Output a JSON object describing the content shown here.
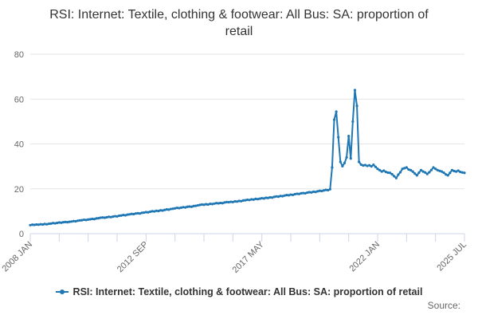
{
  "title": "RSI: Internet: Textile, clothing & footwear: All Bus: SA: proportion of retail",
  "source_label": "Source:",
  "legend": {
    "label": "RSI: Internet: Textile, clothing & footwear: All Bus: SA: proportion of retail"
  },
  "colors": {
    "line": "#1f77b4",
    "grid": "#e6e6e6",
    "axis": "#ccd6eb",
    "tick_label": "#666666",
    "title_text": "#333333",
    "legend_text": "#333333",
    "source_text": "#666666"
  },
  "chart_data": {
    "type": "line",
    "title": "RSI: Internet: Textile, clothing & footwear: All Bus: SA: proportion of retail",
    "xlabel": "",
    "ylabel": "",
    "x_unit": "month",
    "x_start": "2008-01",
    "x_end": "2025-07",
    "x_tick_labels": [
      "2008 JAN",
      "2012 SEP",
      "2017 MAY",
      "2022 JAN",
      "2025 JUL"
    ],
    "x_tick_month_indices": [
      0,
      56,
      112,
      168,
      210
    ],
    "x_minor_tick_interval_months": 14,
    "ylim": [
      0,
      80
    ],
    "y_ticks": [
      0,
      20,
      40,
      60,
      80
    ],
    "grid": "horizontal",
    "legend_position": "bottom",
    "series": [
      {
        "name": "RSI: Internet: Textile, clothing & footwear: All Bus: SA: proportion of retail",
        "color": "#1f77b4",
        "values": [
          3.8,
          4.0,
          3.9,
          4.1,
          4.0,
          4.2,
          4.1,
          4.3,
          4.2,
          4.4,
          4.5,
          4.7,
          4.6,
          4.8,
          5.0,
          4.9,
          5.1,
          5.2,
          5.1,
          5.3,
          5.4,
          5.6,
          5.5,
          5.8,
          5.9,
          6.0,
          6.2,
          6.1,
          6.3,
          6.4,
          6.6,
          6.5,
          6.8,
          6.9,
          7.1,
          7.2,
          7.1,
          7.3,
          7.5,
          7.4,
          7.6,
          7.8,
          7.7,
          8.0,
          8.1,
          8.3,
          8.2,
          8.5,
          8.6,
          8.8,
          8.7,
          9.0,
          9.1,
          9.0,
          9.3,
          9.4,
          9.6,
          9.5,
          9.8,
          10.0,
          9.9,
          10.2,
          10.1,
          10.4,
          10.3,
          10.6,
          10.8,
          10.7,
          11.0,
          11.1,
          11.3,
          11.5,
          11.4,
          11.6,
          11.8,
          11.7,
          12.0,
          12.1,
          12.0,
          12.3,
          12.4,
          12.6,
          12.8,
          13.0,
          12.9,
          13.1,
          13.0,
          13.3,
          13.2,
          13.4,
          13.6,
          13.5,
          13.7,
          13.6,
          13.9,
          14.1,
          14.0,
          14.2,
          14.1,
          14.4,
          14.3,
          14.6,
          14.5,
          14.8,
          14.9,
          15.1,
          15.0,
          15.3,
          15.2,
          15.5,
          15.4,
          15.6,
          15.8,
          15.7,
          16.0,
          15.9,
          16.2,
          16.1,
          16.4,
          16.6,
          16.5,
          16.8,
          16.7,
          17.0,
          17.2,
          17.1,
          17.4,
          17.3,
          17.6,
          17.8,
          17.7,
          18.0,
          18.1,
          18.0,
          18.3,
          18.5,
          18.4,
          18.7,
          18.6,
          18.9,
          19.1,
          19.0,
          19.3,
          19.5,
          19.4,
          19.8,
          29.5,
          50.8,
          54.4,
          43.0,
          32.0,
          30.1,
          31.5,
          34.0,
          43.5,
          33.5,
          50.0,
          64.0,
          57.0,
          32.0,
          30.8,
          30.4,
          30.6,
          30.2,
          30.5,
          30.0,
          30.7,
          29.8,
          28.9,
          28.3,
          27.7,
          28.1,
          27.5,
          27.2,
          27.1,
          26.5,
          25.6,
          24.8,
          26.3,
          27.4,
          28.9,
          29.2,
          29.5,
          28.6,
          28.3,
          27.7,
          26.8,
          26.0,
          27.2,
          28.3,
          27.7,
          27.3,
          26.6,
          27.4,
          28.4,
          29.5,
          28.9,
          28.3,
          28.0,
          27.7,
          27.2,
          26.4,
          26.0,
          27.1,
          28.3,
          27.9,
          27.7,
          28.1,
          27.5,
          27.3,
          27.1
        ]
      }
    ]
  }
}
